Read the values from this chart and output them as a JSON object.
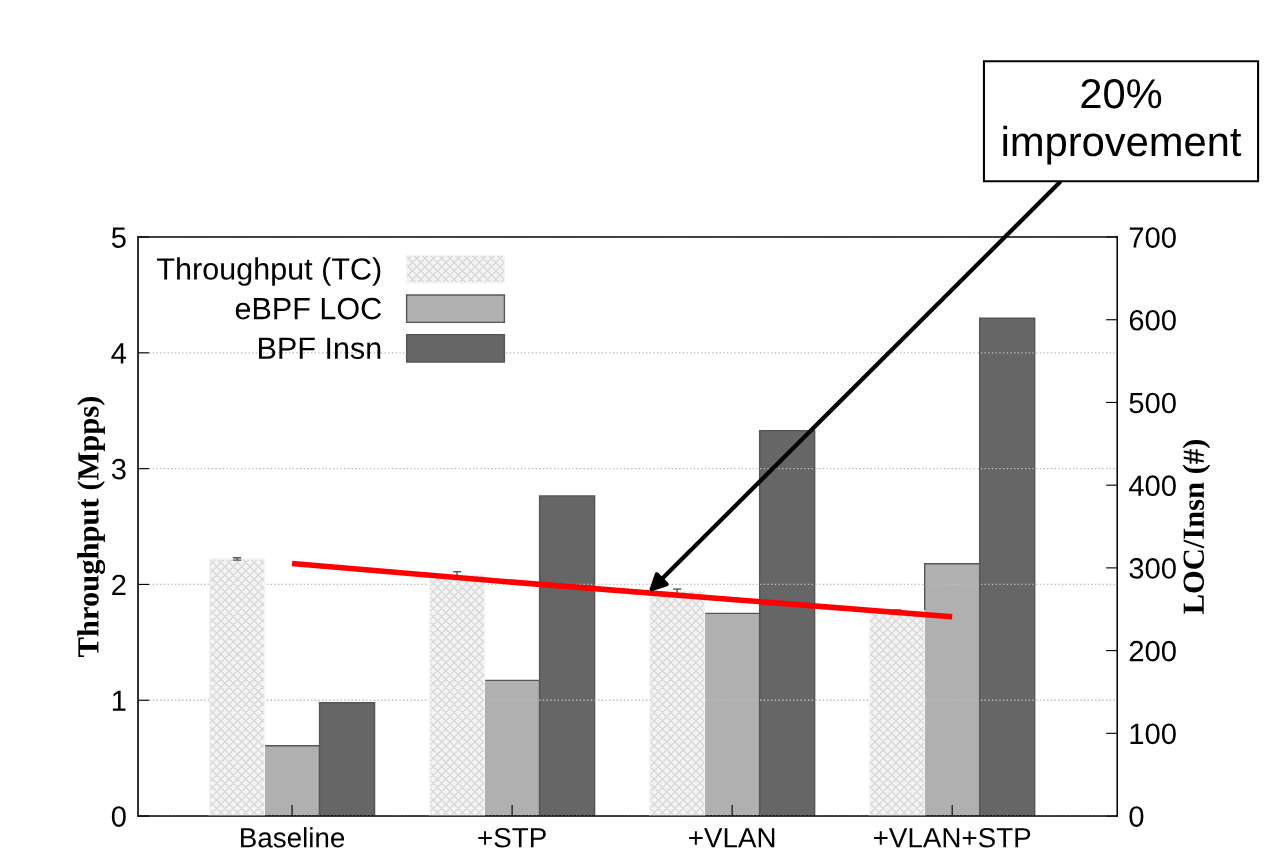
{
  "chart_data": {
    "type": "bar",
    "categories": [
      "Baseline",
      "+STP",
      "+VLAN",
      "+VLAN+STP"
    ],
    "ylabel": "Throughput (Mpps)",
    "y2label": "LOC/Insn (#)",
    "series": [
      {
        "name": "Throughput (TC)",
        "color": "#f4f4f4",
        "values": [
          2.22,
          2.08,
          1.94,
          1.77
        ],
        "errors": [
          0.01,
          0.03,
          0.02,
          0.01
        ]
      },
      {
        "name": "eBPF LOC",
        "color": "#b0b0b0",
        "values": [
          85,
          164,
          245,
          305
        ],
        "axis": "y2"
      },
      {
        "name": "BPF Insn",
        "color": "#666666",
        "values": [
          137,
          387,
          466,
          602
        ],
        "axis": "y2"
      },
      {
        "type": "line",
        "color": "#ff0000",
        "values": [
          2.18,
          2.02,
          1.87,
          1.72
        ]
      }
    ],
    "ylim": [
      0,
      5
    ],
    "yticks": [
      0,
      1,
      2,
      3,
      4,
      5
    ],
    "y2lim": [
      0,
      700
    ],
    "y2ticks": [
      0,
      100,
      200,
      300,
      400,
      500,
      600,
      700
    ],
    "grid": "y",
    "legend": "top left",
    "annotations": [
      "20%\nimprovement"
    ]
  }
}
